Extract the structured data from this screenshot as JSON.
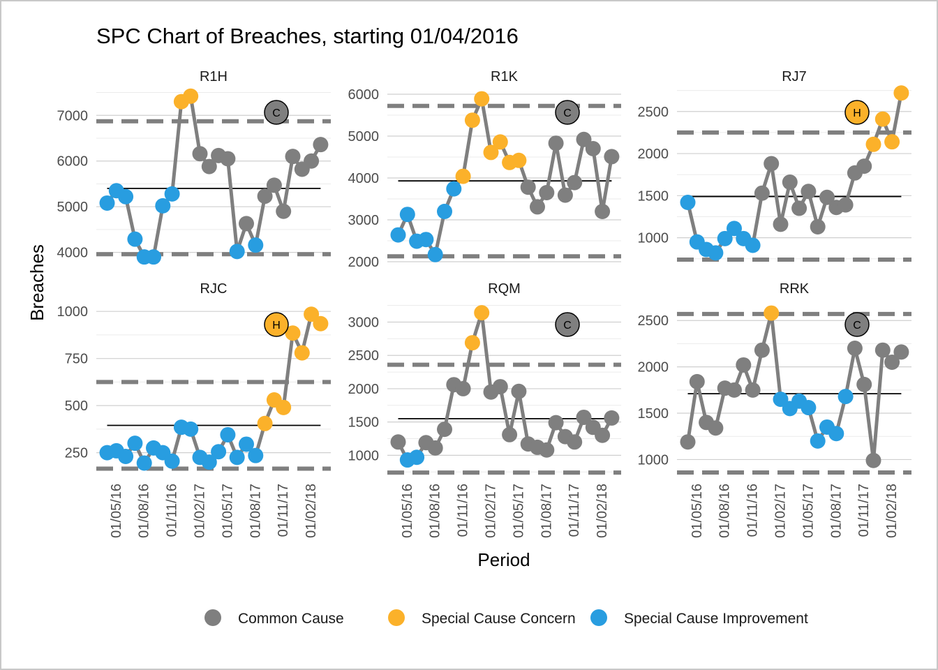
{
  "chart_data": {
    "type": "line",
    "title": "SPC Chart of Breaches, starting 01/04/2016",
    "xlabel": "Period",
    "ylabel": "Breaches",
    "x_tick_labels": [
      "01/05/16",
      "01/08/16",
      "01/11/16",
      "01/02/17",
      "01/05/17",
      "01/08/17",
      "01/11/17",
      "01/02/18"
    ],
    "x_tick_month_index": [
      1,
      4,
      7,
      10,
      13,
      16,
      19,
      22
    ],
    "x_start": "01/04/2016",
    "x_step": "1 month",
    "grid": true,
    "legend_position": "bottom",
    "legend": [
      {
        "key": "C",
        "label": "Common Cause",
        "color": "#7f7f7f"
      },
      {
        "key": "S",
        "label": "Special Cause Concern",
        "color": "#fbb12a"
      },
      {
        "key": "I",
        "label": "Special Cause Improvement",
        "color": "#289de0"
      }
    ],
    "line_color": "#7f7f7f",
    "panels": [
      {
        "name": "R1H",
        "ylim": [
          3750,
          7600
        ],
        "yticks": [
          4000,
          5000,
          6000,
          7000
        ],
        "mean": 5400,
        "ucl": 6870,
        "lcl": 3960,
        "assurance": {
          "label": "C",
          "type": "common"
        },
        "values": [
          5080,
          5350,
          5220,
          4290,
          3900,
          3900,
          5020,
          5280,
          7300,
          7420,
          6160,
          5880,
          6120,
          6050,
          4020,
          4630,
          4160,
          5230,
          5470,
          4900,
          6100,
          5820,
          6000,
          6360
        ],
        "status": [
          "I",
          "I",
          "I",
          "I",
          "I",
          "I",
          "I",
          "I",
          "S",
          "S",
          "C",
          "C",
          "C",
          "C",
          "I",
          "C",
          "I",
          "C",
          "C",
          "C",
          "C",
          "C",
          "C",
          "C"
        ]
      },
      {
        "name": "R1K",
        "ylim": [
          1950,
          6150
        ],
        "yticks": [
          2000,
          3000,
          4000,
          5000,
          6000
        ],
        "mean": 3930,
        "ucl": 5720,
        "lcl": 2130,
        "assurance": {
          "label": "C",
          "type": "common"
        },
        "values": [
          2640,
          3130,
          2490,
          2530,
          2170,
          3200,
          3740,
          4040,
          5380,
          5890,
          4610,
          4860,
          4370,
          4420,
          3780,
          3310,
          3650,
          4830,
          3590,
          3890,
          4920,
          4700,
          3200,
          4510
        ],
        "status": [
          "I",
          "I",
          "I",
          "I",
          "I",
          "I",
          "I",
          "S",
          "S",
          "S",
          "S",
          "S",
          "S",
          "S",
          "C",
          "C",
          "C",
          "C",
          "C",
          "C",
          "C",
          "C",
          "C",
          "C"
        ]
      },
      {
        "name": "RJ7",
        "ylim": [
          690,
          2780
        ],
        "yticks": [
          1000,
          1500,
          2000,
          2500
        ],
        "mean": 1490,
        "ucl": 2250,
        "lcl": 740,
        "assurance": {
          "label": "H",
          "type": "concern"
        },
        "values": [
          1420,
          950,
          860,
          820,
          990,
          1110,
          990,
          910,
          1530,
          1880,
          1160,
          1660,
          1350,
          1550,
          1130,
          1480,
          1360,
          1390,
          1770,
          1850,
          2110,
          2410,
          2140,
          2720
        ],
        "status": [
          "I",
          "I",
          "I",
          "I",
          "I",
          "I",
          "I",
          "I",
          "C",
          "C",
          "C",
          "C",
          "C",
          "C",
          "C",
          "C",
          "C",
          "C",
          "C",
          "C",
          "S",
          "S",
          "S",
          "S"
        ]
      },
      {
        "name": "RJC",
        "ylim": [
          130,
          1060
        ],
        "yticks": [
          250,
          500,
          750,
          1000
        ],
        "mean": 395,
        "ucl": 625,
        "lcl": 165,
        "assurance": {
          "label": "H",
          "type": "concern"
        },
        "values": [
          250,
          260,
          230,
          300,
          195,
          275,
          250,
          205,
          385,
          375,
          225,
          200,
          255,
          345,
          225,
          295,
          235,
          405,
          530,
          490,
          885,
          780,
          985,
          935
        ],
        "status": [
          "I",
          "I",
          "I",
          "I",
          "I",
          "I",
          "I",
          "I",
          "I",
          "I",
          "I",
          "I",
          "I",
          "I",
          "I",
          "I",
          "I",
          "S",
          "S",
          "S",
          "S",
          "S",
          "S",
          "S"
        ]
      },
      {
        "name": "RQM",
        "ylim": [
          700,
          3330
        ],
        "yticks": [
          1000,
          1500,
          2000,
          2500,
          3000
        ],
        "mean": 1550,
        "ucl": 2360,
        "lcl": 740,
        "assurance": {
          "label": "C",
          "type": "common"
        },
        "values": [
          1200,
          930,
          970,
          1190,
          1110,
          1390,
          2060,
          2000,
          2690,
          3140,
          1950,
          2030,
          1310,
          1960,
          1170,
          1120,
          1080,
          1490,
          1280,
          1200,
          1570,
          1420,
          1300,
          1560
        ],
        "status": [
          "C",
          "I",
          "I",
          "C",
          "C",
          "C",
          "C",
          "C",
          "S",
          "S",
          "C",
          "C",
          "C",
          "C",
          "C",
          "C",
          "C",
          "C",
          "C",
          "C",
          "C",
          "C",
          "C",
          "C"
        ]
      },
      {
        "name": "RRK",
        "ylim": [
          830,
          2720
        ],
        "yticks": [
          1000,
          1500,
          2000,
          2500
        ],
        "mean": 1710,
        "ucl": 2570,
        "lcl": 860,
        "assurance": {
          "label": "C",
          "type": "common"
        },
        "values": [
          1190,
          1840,
          1400,
          1340,
          1770,
          1750,
          2020,
          1750,
          2180,
          2580,
          1650,
          1550,
          1630,
          1560,
          1200,
          1350,
          1280,
          1680,
          2200,
          1810,
          990,
          2180,
          2050,
          2160
        ],
        "status": [
          "C",
          "C",
          "C",
          "C",
          "C",
          "C",
          "C",
          "C",
          "C",
          "S",
          "I",
          "I",
          "I",
          "I",
          "I",
          "I",
          "I",
          "I",
          "C",
          "C",
          "C",
          "C",
          "C",
          "C"
        ]
      }
    ]
  }
}
